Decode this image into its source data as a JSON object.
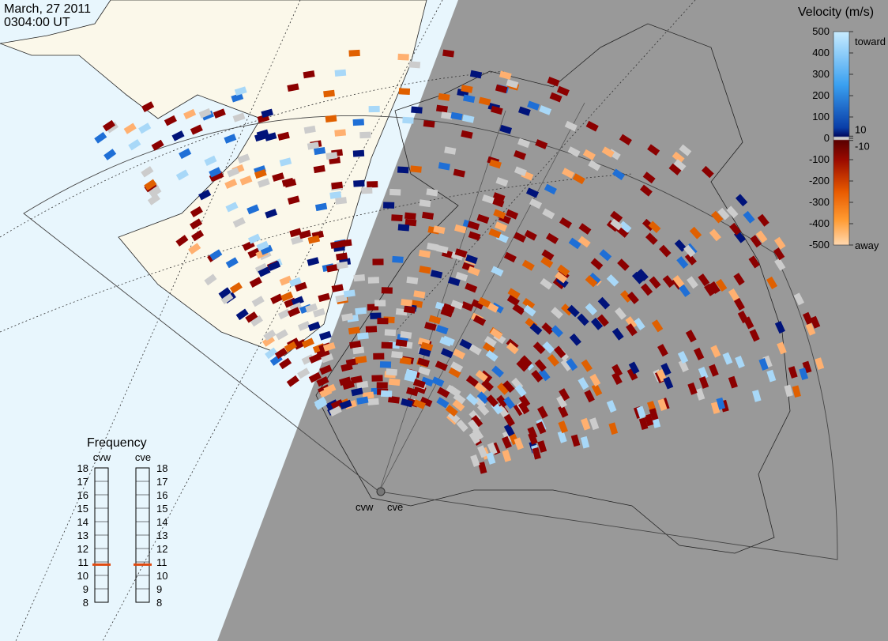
{
  "header": {
    "date": "March, 27 2011",
    "time": "0304:00 UT"
  },
  "velocity_legend": {
    "title": "Velocity (m/s)",
    "ticks": [
      500,
      400,
      300,
      200,
      100,
      10,
      0,
      -10,
      -100,
      -200,
      -300,
      -400,
      -500
    ],
    "top_label": "toward",
    "bottom_label": "away"
  },
  "frequency_panel": {
    "title": "Frequency",
    "ticks": [
      18,
      17,
      16,
      15,
      14,
      13,
      12,
      11,
      10,
      9,
      8
    ],
    "radars": [
      {
        "name": "cvw",
        "value": 10.8
      },
      {
        "name": "cve",
        "value": 10.8
      }
    ]
  },
  "radar_sites": [
    "cvw",
    "cve"
  ]
}
